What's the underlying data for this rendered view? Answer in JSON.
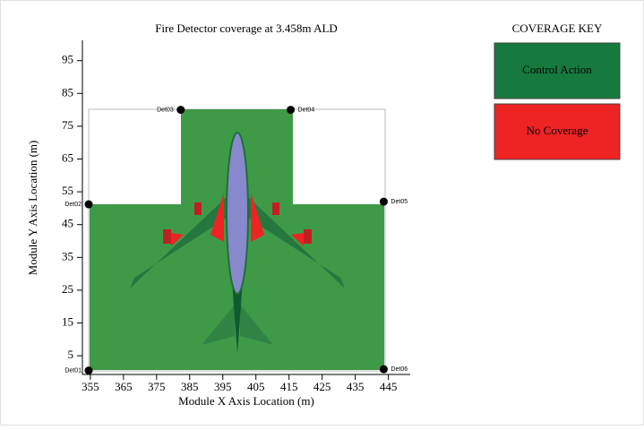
{
  "chart_data": {
    "type": "scatter",
    "title": "Fire Detector coverage at 3.458m ALD",
    "x_label": "Module X Axis Location (m)",
    "y_label": "Module Y Axis Location (m)",
    "xlim": [
      352.6,
      451.6
    ],
    "ylim": [
      -0.7,
      101.2
    ],
    "xticks": [
      355,
      365,
      375,
      385,
      395,
      405,
      415,
      425,
      435,
      445
    ],
    "yticks": [
      5,
      15,
      25,
      35,
      45,
      55,
      65,
      75,
      85,
      95
    ],
    "point_labels": [
      "Det01",
      "Det02",
      "Det03",
      "Det04",
      "Det05",
      "Det06"
    ],
    "x": [
      354.5,
      354.5,
      382.3,
      415.5,
      443.6,
      443.6
    ],
    "values": [
      0.5,
      51.2,
      80,
      80,
      52,
      0.9
    ],
    "color": "#000000",
    "legend": {
      "title": "COVERAGE KEY",
      "entries": [
        {
          "label": "Control Action",
          "color": "#167a3e"
        },
        {
          "label": "No Coverage",
          "color": "#ee2323"
        }
      ]
    }
  }
}
